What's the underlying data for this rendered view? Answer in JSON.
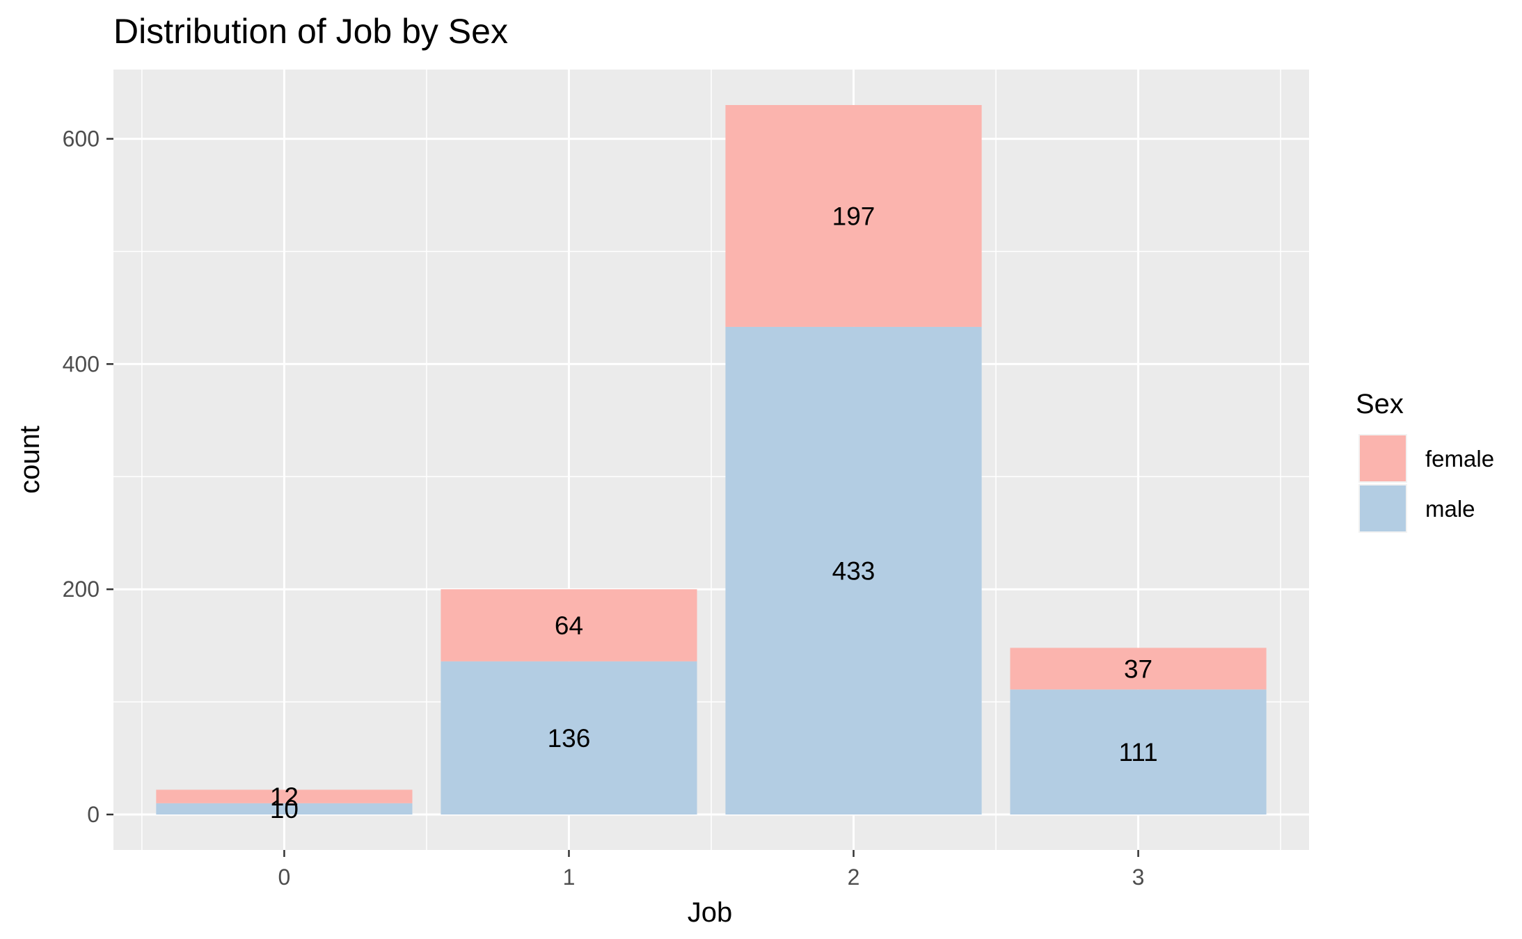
{
  "chart_data": {
    "type": "bar",
    "stacked": true,
    "title": "Distribution of Job by Sex",
    "xlabel": "Job",
    "ylabel": "count",
    "categories": [
      "0",
      "1",
      "2",
      "3"
    ],
    "series": [
      {
        "name": "female",
        "values": [
          12,
          64,
          197,
          37
        ],
        "color": "#FBB4AE"
      },
      {
        "name": "male",
        "values": [
          10,
          136,
          433,
          111
        ],
        "color": "#B3CDE3"
      }
    ],
    "ylim": [
      -31.5,
      661.5
    ],
    "yticks": [
      0,
      200,
      400,
      600
    ],
    "ytick_labels": [
      "0",
      "200",
      "400",
      "600"
    ],
    "grid": true,
    "panel_background": "#EBEBEB",
    "legend": {
      "title": "Sex",
      "placement": "right",
      "entries": [
        "female",
        "male"
      ]
    }
  }
}
